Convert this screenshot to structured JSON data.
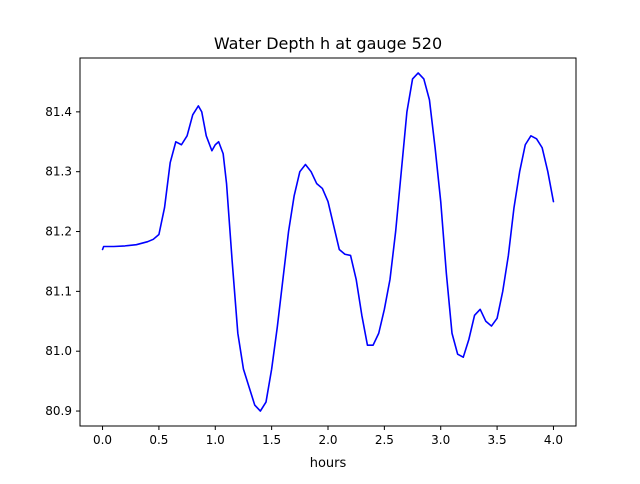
{
  "chart_data": {
    "type": "line",
    "title": "Water Depth h at gauge 520",
    "xlabel": "hours",
    "ylabel": "",
    "xlim": [
      -0.2,
      4.2
    ],
    "ylim": [
      80.875,
      81.49
    ],
    "xticks": [
      0.0,
      0.5,
      1.0,
      1.5,
      2.0,
      2.5,
      3.0,
      3.5,
      4.0
    ],
    "xtick_labels": [
      "0.0",
      "0.5",
      "1.0",
      "1.5",
      "2.0",
      "2.5",
      "3.0",
      "3.5",
      "4.0"
    ],
    "yticks": [
      80.9,
      81.0,
      81.1,
      81.2,
      81.3,
      81.4
    ],
    "ytick_labels": [
      "80.9",
      "81.0",
      "81.1",
      "81.2",
      "81.3",
      "81.4"
    ],
    "grid": false,
    "legend": "none",
    "series": [
      {
        "color": "#0000ff",
        "x": [
          0.0,
          0.01,
          0.1,
          0.2,
          0.3,
          0.4,
          0.45,
          0.5,
          0.55,
          0.6,
          0.65,
          0.7,
          0.75,
          0.8,
          0.85,
          0.88,
          0.92,
          0.97,
          1.0,
          1.03,
          1.07,
          1.1,
          1.15,
          1.2,
          1.25,
          1.3,
          1.35,
          1.4,
          1.45,
          1.5,
          1.55,
          1.6,
          1.65,
          1.7,
          1.75,
          1.8,
          1.85,
          1.9,
          1.95,
          2.0,
          2.05,
          2.1,
          2.15,
          2.2,
          2.25,
          2.3,
          2.35,
          2.4,
          2.45,
          2.5,
          2.55,
          2.6,
          2.65,
          2.7,
          2.75,
          2.8,
          2.85,
          2.9,
          2.95,
          3.0,
          3.05,
          3.1,
          3.15,
          3.2,
          3.25,
          3.3,
          3.35,
          3.4,
          3.45,
          3.5,
          3.55,
          3.6,
          3.65,
          3.7,
          3.75,
          3.8,
          3.85,
          3.9,
          3.95,
          4.0
        ],
        "y": [
          81.17,
          81.175,
          81.175,
          81.176,
          81.178,
          81.183,
          81.187,
          81.195,
          81.24,
          81.315,
          81.35,
          81.345,
          81.36,
          81.395,
          81.41,
          81.4,
          81.36,
          81.335,
          81.345,
          81.35,
          81.33,
          81.28,
          81.15,
          81.03,
          80.97,
          80.94,
          80.91,
          80.9,
          80.915,
          80.97,
          81.04,
          81.12,
          81.2,
          81.26,
          81.3,
          81.312,
          81.3,
          81.28,
          81.272,
          81.25,
          81.21,
          81.17,
          81.162,
          81.16,
          81.12,
          81.06,
          81.01,
          81.01,
          81.03,
          81.07,
          81.12,
          81.2,
          81.3,
          81.4,
          81.455,
          81.465,
          81.455,
          81.42,
          81.34,
          81.25,
          81.13,
          81.03,
          80.995,
          80.99,
          81.02,
          81.06,
          81.07,
          81.05,
          81.042,
          81.055,
          81.1,
          81.16,
          81.24,
          81.3,
          81.345,
          81.36,
          81.355,
          81.34,
          81.3,
          81.25
        ]
      }
    ]
  }
}
